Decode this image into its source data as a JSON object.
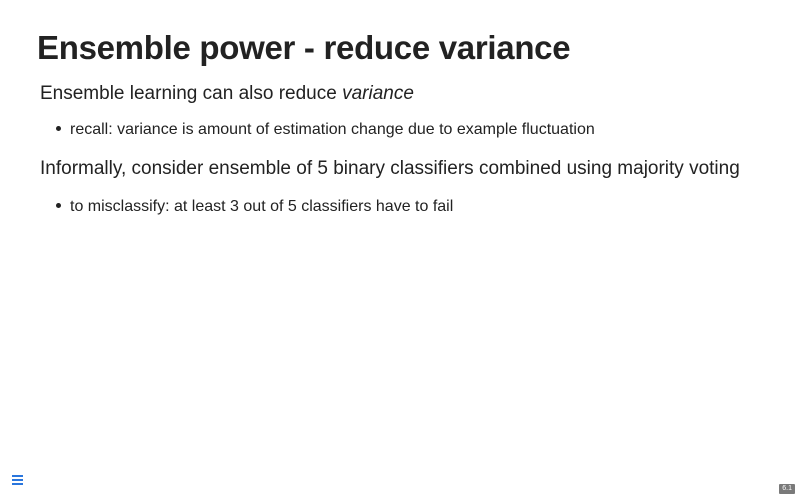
{
  "slide": {
    "title": "Ensemble power - reduce variance",
    "paragraph1": {
      "text": "Ensemble learning can also reduce ",
      "emphasis": "variance"
    },
    "bullet1": "recall: variance is amount of estimation change due to example fluctuation",
    "paragraph2": "Informally, consider ensemble of 5 binary classifiers combined using majority voting",
    "bullet2": "to misclassify: at least 3 out of 5 classifiers have to fail"
  },
  "controls": {
    "menu_icon": "hamburger-menu-icon",
    "menu_color": "#2a76dd",
    "slide_number": "6.1"
  }
}
